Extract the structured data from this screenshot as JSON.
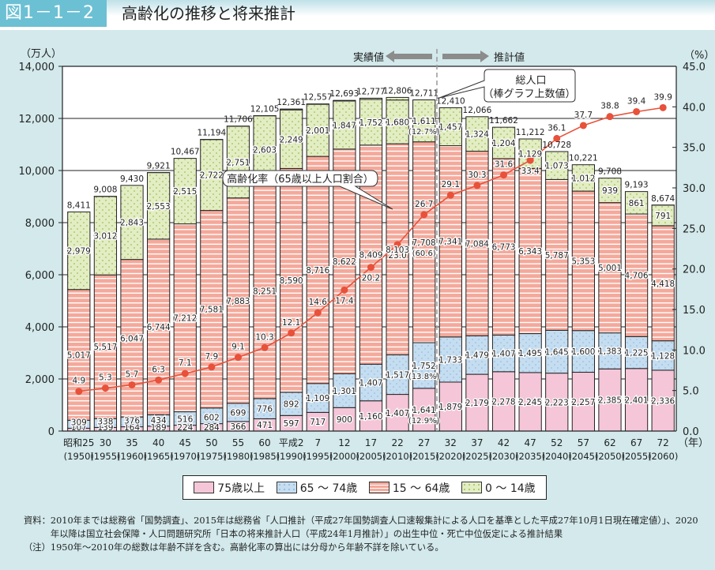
{
  "header": {
    "figure_number": "図1－1－2",
    "title": "高齢化の推移と将来推計"
  },
  "chart_data": {
    "type": "bar",
    "title": "高齢化の推移と将来推計",
    "stacked": true,
    "ylabel_left": "（万人）",
    "ylabel_right": "（%）",
    "xlabel": "（年）",
    "ylim_left": [
      0,
      14000
    ],
    "ylim_right": [
      0,
      45
    ],
    "yticks_left": [
      "0",
      "2,000",
      "4,000",
      "6,000",
      "8,000",
      "10,000",
      "12,000",
      "14,000"
    ],
    "yticks_right": [
      "0.0",
      "5.0",
      "10.0",
      "15.0",
      "20.0",
      "25.0",
      "30.0",
      "35.0",
      "40.0",
      "45.0"
    ],
    "grid": true,
    "legend_position": "bottom",
    "categories": [
      {
        "era": "昭和25",
        "year": "(1950)"
      },
      {
        "era": "30",
        "year": "(1955)"
      },
      {
        "era": "35",
        "year": "(1960)"
      },
      {
        "era": "40",
        "year": "(1965)"
      },
      {
        "era": "45",
        "year": "(1970)"
      },
      {
        "era": "50",
        "year": "(1975)"
      },
      {
        "era": "55",
        "year": "(1980)"
      },
      {
        "era": "60",
        "year": "(1985)"
      },
      {
        "era": "平成2",
        "year": "(1990)"
      },
      {
        "era": "7",
        "year": "(1995)"
      },
      {
        "era": "12",
        "year": "(2000)"
      },
      {
        "era": "17",
        "year": "(2005)"
      },
      {
        "era": "22",
        "year": "(2010)"
      },
      {
        "era": "27",
        "year": "(2015)"
      },
      {
        "era": "32",
        "year": "(2020)"
      },
      {
        "era": "37",
        "year": "(2025)"
      },
      {
        "era": "42",
        "year": "(2030)"
      },
      {
        "era": "47",
        "year": "(2035)"
      },
      {
        "era": "52",
        "year": "(2040)"
      },
      {
        "era": "57",
        "year": "(2045)"
      },
      {
        "era": "62",
        "year": "(2050)"
      },
      {
        "era": "67",
        "year": "(2055)"
      },
      {
        "era": "72",
        "year": "(2060)"
      }
    ],
    "series": [
      {
        "name": "75歳以上",
        "key": "age75",
        "color": "#f5c6d8",
        "values": [
          107,
          139,
          164,
          189,
          224,
          284,
          366,
          471,
          597,
          717,
          900,
          1160,
          1407,
          1641,
          1879,
          2179,
          2278,
          2245,
          2223,
          2257,
          2385,
          2401,
          2336
        ]
      },
      {
        "name": "65～74歳",
        "key": "age65",
        "color": "#c5ddf0",
        "values": [
          309,
          338,
          376,
          434,
          516,
          602,
          699,
          776,
          892,
          1109,
          1301,
          1407,
          1517,
          1752,
          1733,
          1479,
          1407,
          1495,
          1645,
          1600,
          1383,
          1225,
          1128
        ]
      },
      {
        "name": "15～64歳",
        "key": "age15",
        "color": "#f4a99b",
        "values": [
          5017,
          5517,
          6047,
          6744,
          7212,
          7581,
          7883,
          8251,
          8590,
          8716,
          8622,
          8409,
          8103,
          7708,
          7341,
          7084,
          6773,
          6343,
          5787,
          5353,
          5001,
          4706,
          4418
        ]
      },
      {
        "name": "0～14歳",
        "key": "age0",
        "color": "#e3edc3",
        "values": [
          2979,
          3012,
          2843,
          2553,
          2515,
          2722,
          2751,
          2603,
          2249,
          2001,
          1847,
          1752,
          1680,
          1611,
          1457,
          1324,
          1204,
          1129,
          1073,
          1012,
          939,
          861,
          791
        ]
      }
    ],
    "totals": [
      8411,
      9008,
      9430,
      9921,
      10467,
      11194,
      11706,
      12105,
      12361,
      12557,
      12693,
      12777,
      12806,
      12711,
      12410,
      12066,
      11662,
      11212,
      10728,
      10221,
      9708,
      9193,
      8674
    ],
    "line_series": {
      "name": "高齢化率（65歳以上人口割合）",
      "axis": "right",
      "color": "#e8513a",
      "values": [
        4.9,
        5.3,
        5.7,
        6.3,
        7.1,
        7.9,
        9.1,
        10.3,
        12.1,
        14.6,
        17.4,
        20.2,
        23.0,
        26.7,
        29.1,
        30.3,
        31.6,
        33.4,
        36.1,
        37.7,
        38.8,
        39.4,
        39.9
      ]
    },
    "annotations": {
      "actual_label": "実績値",
      "projection_label": "推計値",
      "total_callout_line1": "総人口",
      "total_callout_line2": "（棒グラフ上数値）",
      "aging_rate_callout": "高齢化率（65歳以上人口割合）",
      "pct_2015_age0": "(12.7%)",
      "pct_2015_age15": "(60.6)",
      "pct_2015_age65": "(13.8%)",
      "pct_2015_age75": "(12.9%)"
    }
  },
  "legend": {
    "items": [
      {
        "label": "75歳以上"
      },
      {
        "label": "65 ～ 74歳"
      },
      {
        "label": "15 ～ 64歳"
      },
      {
        "label": "0 ～ 14歳"
      }
    ]
  },
  "notes": {
    "source_key": "資料：",
    "source_text": "2010年までは総務省「国勢調査」、2015年は総務省「人口推計（平成27年国勢調査人口速報集計による人口を基準とした平成27年10月1日現在確定値）」、2020年以降は国立社会保障・人口問題研究所「日本の将来推計人口（平成24年1月推計）」の出生中位・死亡中位仮定による推計結果",
    "note_key": "（注）",
    "note_text": "1950年～2010年の総数は年齢不詳を含む。高齢化率の算出には分母から年齢不詳を除いている。"
  }
}
